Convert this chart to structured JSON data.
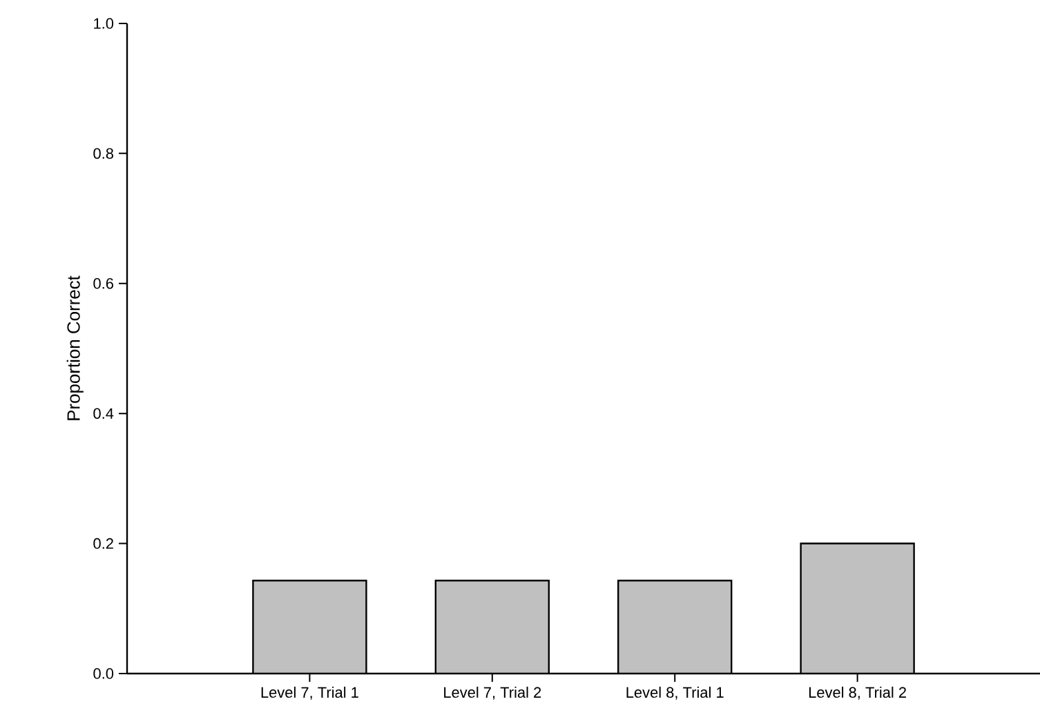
{
  "chart_data": {
    "type": "bar",
    "ylabel": "Proportion Correct",
    "categories": [
      "Level 7, Trial 1",
      "Level 7, Trial 2",
      "Level 8, Trial 1",
      "Level 8, Trial 2"
    ],
    "values": [
      0.143,
      0.143,
      0.143,
      0.2
    ],
    "color": "#c0c0c0",
    "ylim": [
      0,
      1
    ],
    "yticks": [
      {
        "value": 0,
        "label": "0.0"
      },
      {
        "value": 0.2,
        "label": "0.2"
      },
      {
        "value": 0.4,
        "label": "0.4"
      },
      {
        "value": 0.6,
        "label": "0.6"
      },
      {
        "value": 0.8,
        "label": "0.8"
      },
      {
        "value": 1,
        "label": "1.0"
      }
    ],
    "grid": false,
    "legend": false
  }
}
